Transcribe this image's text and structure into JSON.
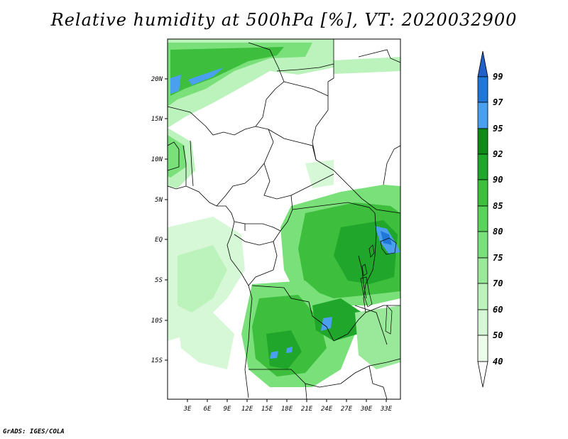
{
  "title": "Relative humidity at 500hPa [%], VT: 2020032900",
  "credit": "GrADS: IGES/COLA",
  "map": {
    "lat_labels": [
      "20N",
      "15N",
      "10N",
      "5N",
      "EQ",
      "5S",
      "10S",
      "15S"
    ],
    "lon_labels": [
      "3E",
      "6E",
      "9E",
      "12E",
      "15E",
      "18E",
      "21E",
      "24E",
      "27E",
      "30E",
      "33E"
    ]
  },
  "colorbar": {
    "labels": [
      "99",
      "97",
      "95",
      "92",
      "90",
      "85",
      "80",
      "75",
      "70",
      "60",
      "50",
      "40"
    ],
    "colors": [
      "#2060c8",
      "#1f78d8",
      "#4aa0ee",
      "#0f8a16",
      "#20a62a",
      "#3dbe3d",
      "#5ad35a",
      "#7ae07a",
      "#9ae99a",
      "#bcf2bc",
      "#d6f8d6",
      "#ecfdec"
    ]
  }
}
